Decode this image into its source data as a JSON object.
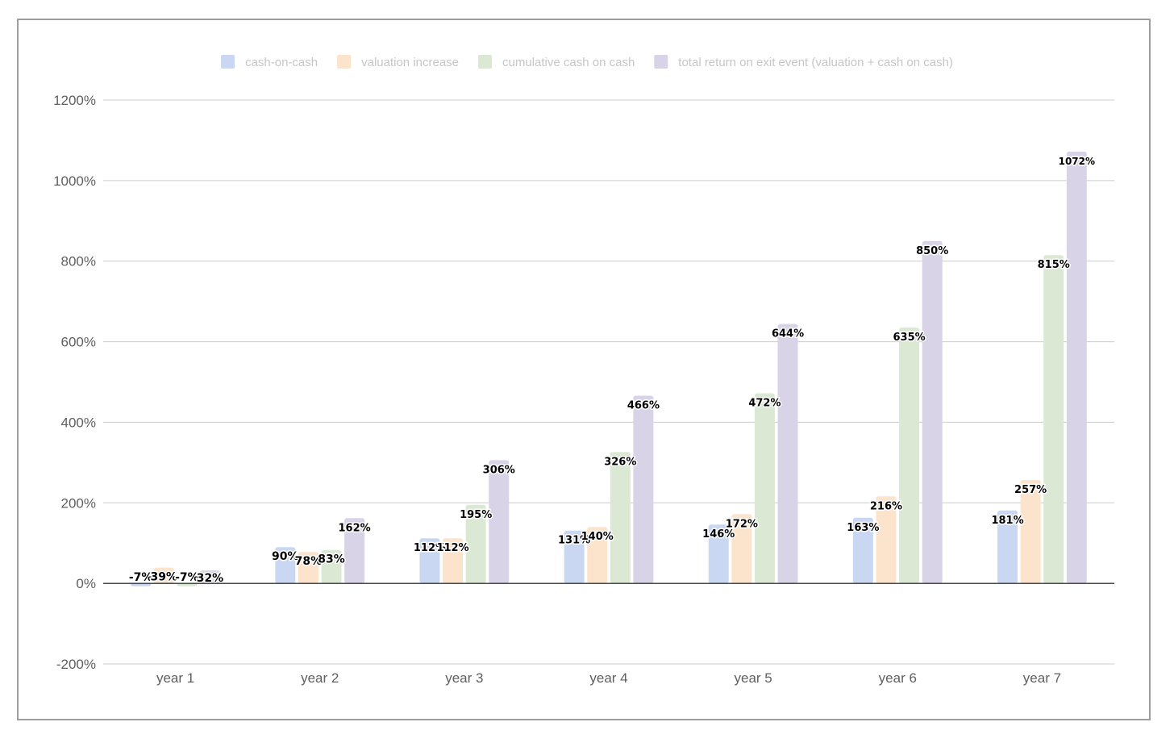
{
  "chart_data": {
    "type": "bar",
    "title": "",
    "xlabel": "",
    "ylabel": "",
    "categories": [
      "year 1",
      "year 2",
      "year 3",
      "year 4",
      "year 5",
      "year 6",
      "year 7"
    ],
    "ylim": [
      -200,
      1200
    ],
    "yticks": [
      "-200%",
      "0%",
      "200%",
      "400%",
      "600%",
      "800%",
      "1000%",
      "1200%"
    ],
    "ytick_values": [
      -200,
      0,
      200,
      400,
      600,
      800,
      1000,
      1200
    ],
    "grid": true,
    "legend_position": "top",
    "series": [
      {
        "name": "cash-on-cash",
        "color": "#c9d7f3",
        "values": [
          -7,
          90,
          112,
          131,
          146,
          163,
          181
        ],
        "labels": [
          "-7%",
          "90%",
          "112%",
          "131%",
          "146%",
          "163%",
          "181%"
        ]
      },
      {
        "name": "valuation increase",
        "color": "#fbe3cc",
        "values": [
          39,
          78,
          112,
          140,
          172,
          216,
          257
        ],
        "labels": [
          "39%",
          "78%",
          "112%",
          "140%",
          "172%",
          "216%",
          "257%"
        ]
      },
      {
        "name": "cumulative cash on cash",
        "color": "#dbe8d3",
        "values": [
          -7,
          83,
          195,
          326,
          472,
          635,
          815
        ],
        "labels": [
          "-7%",
          "83%",
          "195%",
          "326%",
          "472%",
          "635%",
          "815%"
        ]
      },
      {
        "name": "total return on exit event (valuation + cash on cash)",
        "color": "#d8d3e7",
        "values": [
          32,
          162,
          306,
          466,
          644,
          850,
          1072
        ],
        "labels": [
          "32%",
          "162%",
          "306%",
          "466%",
          "644%",
          "850%",
          "1072%"
        ]
      }
    ]
  }
}
